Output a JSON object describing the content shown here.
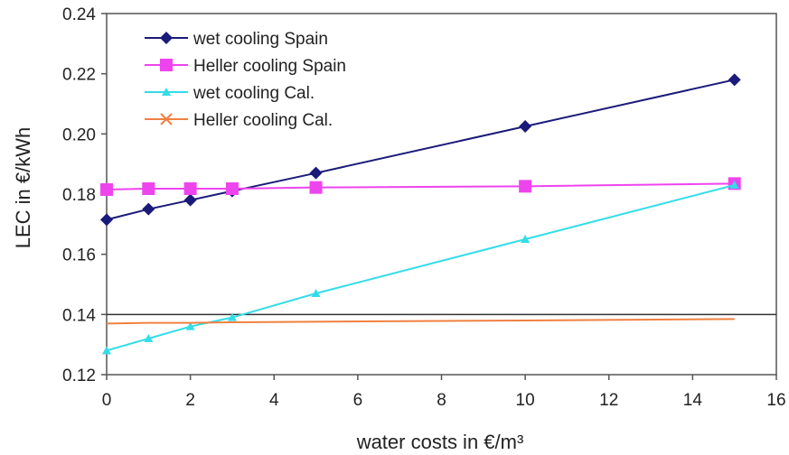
{
  "chart_data": {
    "type": "line",
    "xlabel": "water costs in €/m³",
    "ylabel": "LEC in €/kWh",
    "xlim": [
      0,
      16
    ],
    "ylim": [
      0.12,
      0.24
    ],
    "xticks": [
      "0",
      "2",
      "4",
      "6",
      "8",
      "10",
      "12",
      "14",
      "16"
    ],
    "yticks": [
      "0.12",
      "0.14",
      "0.16",
      "0.18",
      "0.20",
      "0.22",
      "0.24"
    ],
    "grid": false,
    "legend_position": "top-left",
    "reference_line": 0.14,
    "series": [
      {
        "name": "wet cooling Spain",
        "color": "#1a1a7a",
        "marker": "diamond",
        "x": [
          0,
          1,
          2,
          3,
          5,
          10,
          15
        ],
        "y": [
          0.1715,
          0.175,
          0.178,
          0.181,
          0.187,
          0.2025,
          0.218
        ]
      },
      {
        "name": "Heller cooling Spain",
        "color": "#ee44ee",
        "marker": "square",
        "x": [
          0,
          1,
          2,
          3,
          5,
          10,
          15
        ],
        "y": [
          0.1815,
          0.1818,
          0.1818,
          0.1818,
          0.1822,
          0.1826,
          0.1835
        ]
      },
      {
        "name": "wet cooling Cal.",
        "color": "#33dde8",
        "marker": "triangle",
        "x": [
          0,
          1,
          2,
          3,
          5,
          10,
          15
        ],
        "y": [
          0.128,
          0.132,
          0.136,
          0.139,
          0.147,
          0.165,
          0.183
        ]
      },
      {
        "name": "Heller cooling Cal.",
        "color": "#f08040",
        "marker": "cross",
        "x": [
          0,
          1,
          2,
          3,
          5,
          10,
          15
        ],
        "y": [
          0.137,
          0.1372,
          0.1372,
          0.1374,
          0.1376,
          0.138,
          0.1385
        ]
      }
    ]
  }
}
